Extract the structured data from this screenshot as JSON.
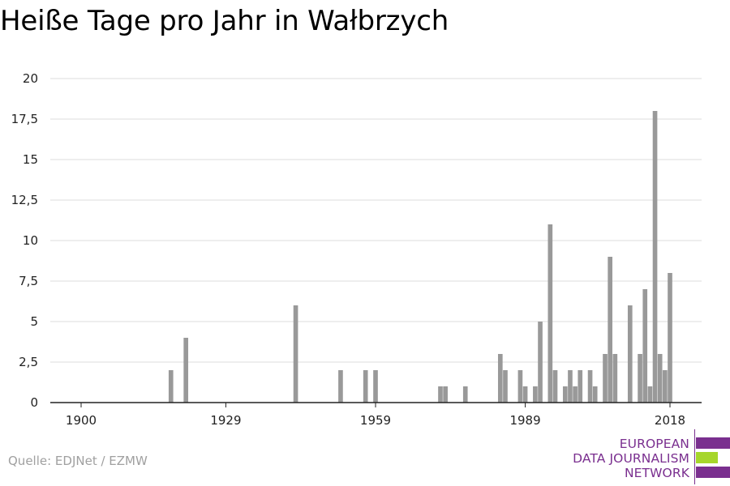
{
  "chart_data": {
    "type": "bar",
    "title": "Heiße Tage pro Jahr in Wałbrzych",
    "xlabel": "",
    "ylabel": "",
    "xlim": [
      1894,
      2024
    ],
    "ylim": [
      0,
      20
    ],
    "x_ticks": [
      1900,
      1929,
      1959,
      1989,
      2018
    ],
    "y_ticks": [
      0,
      2.5,
      5,
      7.5,
      10,
      12.5,
      15,
      17.5,
      20
    ],
    "y_tick_labels": [
      "0",
      "2,5",
      "5",
      "7,5",
      "10",
      "12,5",
      "15",
      "17,5",
      "20"
    ],
    "grid": true,
    "bar_color": "#999999",
    "years": [
      1918,
      1921,
      1943,
      1952,
      1957,
      1959,
      1972,
      1973,
      1977,
      1984,
      1985,
      1988,
      1989,
      1991,
      1992,
      1994,
      1995,
      1997,
      1998,
      1999,
      2000,
      2002,
      2003,
      2005,
      2006,
      2007,
      2010,
      2012,
      2013,
      2014,
      2015,
      2016,
      2017,
      2018,
      2019
    ],
    "values": [
      2,
      4,
      6,
      2,
      2,
      2,
      1,
      1,
      1,
      3,
      2,
      2,
      1,
      1,
      5,
      11,
      2,
      1,
      2,
      1,
      2,
      2,
      1,
      3,
      9,
      3,
      6,
      3,
      7,
      1,
      18,
      3,
      2,
      8,
      0
    ]
  },
  "source": "Quelle: EDJNet / EZMW",
  "logo": {
    "line1": "EUROPEAN",
    "line2": "DATA JOURNALISM",
    "line3": "NETWORK",
    "purple": "#7a2f8f",
    "green": "#a6d62b"
  }
}
